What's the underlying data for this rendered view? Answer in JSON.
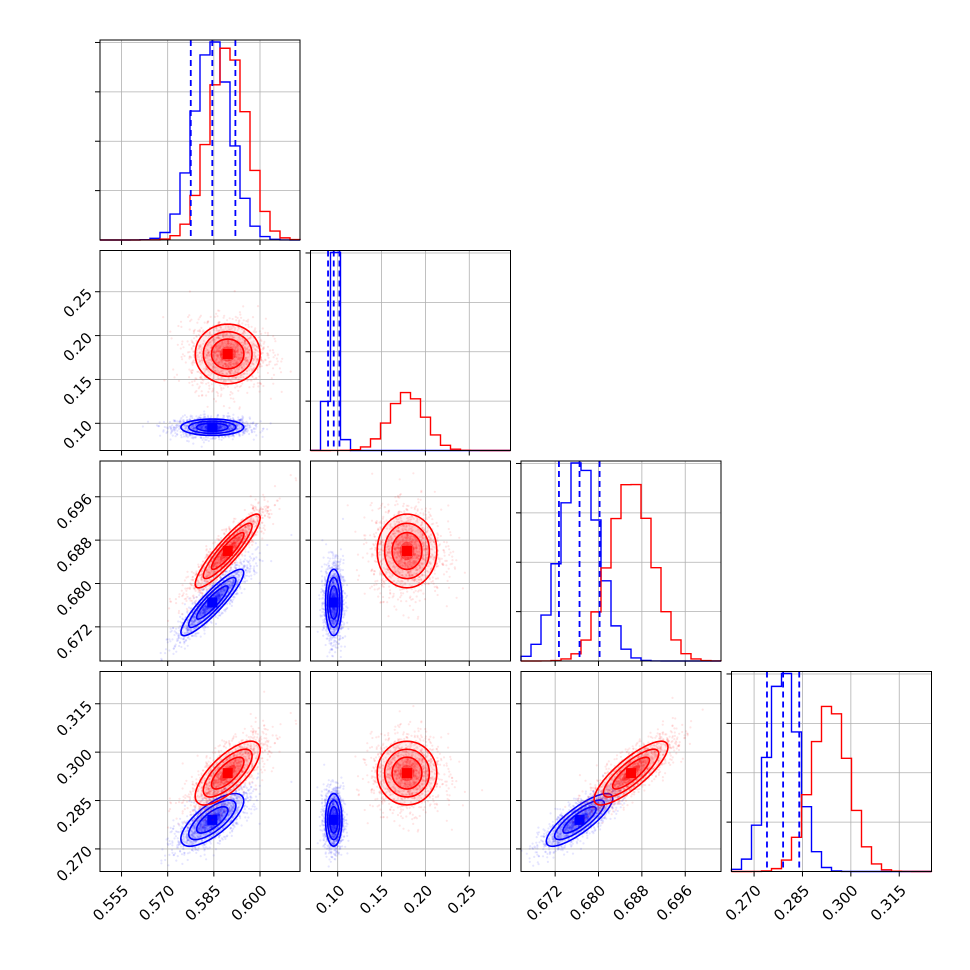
{
  "colors": {
    "blue": "#0000ff",
    "red": "#ff0000",
    "grid": "#b0b0b0",
    "frame": "#000000"
  },
  "chart_data": {
    "type": "corner",
    "params": [
      {
        "id": "p1",
        "range": [
          0.548,
          0.613
        ],
        "ticks": [
          "0.555",
          "0.570",
          "0.585",
          "0.600"
        ]
      },
      {
        "id": "p2",
        "range": [
          0.069,
          0.297
        ],
        "ticks": [
          "0.10",
          "0.15",
          "0.20",
          "0.25"
        ]
      },
      {
        "id": "p3",
        "range": [
          0.6657,
          0.7026
        ],
        "ticks": [
          "0.672",
          "0.680",
          "0.688",
          "0.696"
        ]
      },
      {
        "id": "p4",
        "range": [
          0.263,
          0.325
        ],
        "ticks": [
          "0.270",
          "0.285",
          "0.300",
          "0.315"
        ]
      }
    ],
    "series": [
      {
        "color": "blue",
        "mean": [
          0.5845,
          0.0955,
          0.6765,
          0.279
        ],
        "sd": [
          0.006,
          0.0055,
          0.0036,
          0.0048
        ],
        "corr": [
          [
            1,
            0,
            0.9,
            0.72
          ],
          [
            0,
            1,
            0,
            0
          ],
          [
            0.9,
            0,
            1,
            0.82
          ],
          [
            0.72,
            0,
            0.82,
            1
          ]
        ],
        "quantiles": [
          [
            0.5775,
            0.5845,
            0.592
          ],
          [
            0.089,
            0.0955,
            0.102
          ],
          [
            0.6727,
            0.6765,
            0.6802
          ],
          [
            0.274,
            0.279,
            0.284
          ]
        ]
      },
      {
        "color": "red",
        "mean": [
          0.5895,
          0.179,
          0.686,
          0.2935
        ],
        "sd": [
          0.0062,
          0.02,
          0.004,
          0.0058
        ],
        "corr": [
          [
            1,
            0,
            0.9,
            0.72
          ],
          [
            0,
            1,
            0,
            0
          ],
          [
            0.9,
            0,
            1,
            0.82
          ],
          [
            0.72,
            0,
            0.82,
            1
          ]
        ],
        "quantiles": [
          [
            0.583,
            0.5895,
            0.596
          ],
          [
            0.159,
            0.179,
            0.199
          ],
          [
            0.682,
            0.686,
            0.69
          ],
          [
            0.2875,
            0.2935,
            0.2995
          ]
        ]
      }
    ],
    "contour_levels": [
      0.5,
      1.0,
      1.5,
      2.0
    ],
    "grid": true
  }
}
